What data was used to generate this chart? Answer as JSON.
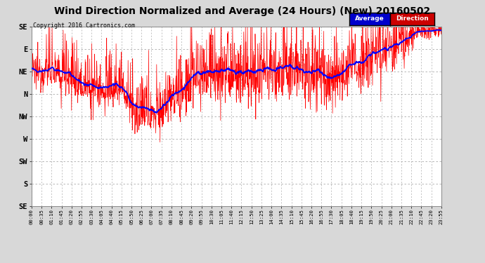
{
  "title": "Wind Direction Normalized and Average (24 Hours) (New) 20160502",
  "copyright": "Copyright 2016 Cartronics.com",
  "background_color": "#d8d8d8",
  "plot_bg_color": "#ffffff",
  "grid_color": "#aaaaaa",
  "title_fontsize": 10,
  "ytick_labels": [
    "SE",
    "E",
    "NE",
    "N",
    "NW",
    "W",
    "SW",
    "S",
    "SE"
  ],
  "ytick_values": [
    360,
    315,
    270,
    225,
    180,
    135,
    90,
    45,
    0
  ],
  "ylim_min": 0,
  "ylim_max": 360,
  "num_points": 1436,
  "xtick_step": 35,
  "seed": 12345
}
